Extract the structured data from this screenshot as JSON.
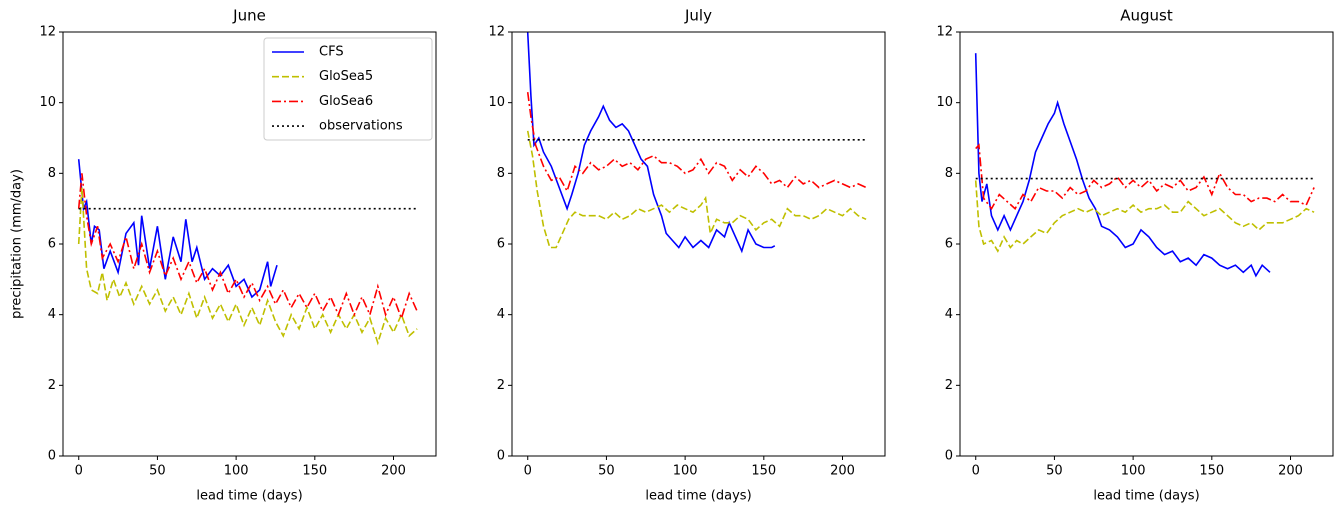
{
  "chart_data": [
    {
      "type": "line",
      "title": "June",
      "xlabel": "lead time (days)",
      "ylabel": "precipitation (mm/day)",
      "xlim": [
        -10,
        227
      ],
      "ylim": [
        0,
        12
      ],
      "xticks": [
        0,
        50,
        100,
        150,
        200
      ],
      "yticks": [
        0,
        2,
        4,
        6,
        8,
        10,
        12
      ],
      "legend": "upper right",
      "series": [
        {
          "name": "CFS",
          "color": "#0000ff",
          "style": "solid",
          "x": [
            0,
            3,
            5,
            8,
            10,
            13,
            16,
            20,
            25,
            30,
            35,
            38,
            40,
            45,
            50,
            55,
            60,
            65,
            68,
            72,
            75,
            80,
            85,
            90,
            95,
            100,
            105,
            110,
            115,
            120,
            122,
            126
          ],
          "values": [
            8.4,
            7.0,
            7.2,
            6.0,
            6.5,
            6.4,
            5.3,
            5.8,
            5.2,
            6.3,
            6.6,
            5.4,
            6.8,
            5.3,
            6.5,
            5.0,
            6.2,
            5.5,
            6.7,
            5.5,
            5.9,
            5.0,
            5.3,
            5.1,
            5.4,
            4.8,
            5.0,
            4.5,
            4.7,
            5.5,
            4.8,
            5.4
          ]
        },
        {
          "name": "GloSea5",
          "color": "#bfbf00",
          "style": "dashed",
          "x": [
            0,
            2,
            5,
            8,
            12,
            15,
            18,
            22,
            26,
            30,
            35,
            40,
            45,
            50,
            55,
            60,
            65,
            70,
            75,
            80,
            85,
            90,
            95,
            100,
            105,
            110,
            115,
            120,
            125,
            130,
            135,
            140,
            145,
            150,
            155,
            160,
            165,
            170,
            175,
            180,
            185,
            190,
            195,
            200,
            205,
            210,
            215
          ],
          "values": [
            6.0,
            7.6,
            5.3,
            4.7,
            4.6,
            5.2,
            4.4,
            5.0,
            4.5,
            4.9,
            4.3,
            4.8,
            4.3,
            4.7,
            4.1,
            4.5,
            4.0,
            4.6,
            3.9,
            4.5,
            3.9,
            4.3,
            3.8,
            4.3,
            3.7,
            4.2,
            3.7,
            4.4,
            3.8,
            3.4,
            4.0,
            3.6,
            4.2,
            3.6,
            4.0,
            3.5,
            4.0,
            3.6,
            4.0,
            3.5,
            3.9,
            3.2,
            3.9,
            3.5,
            4.0,
            3.4,
            3.6
          ]
        },
        {
          "name": "GloSea6",
          "color": "#ff0000",
          "style": "dashdot",
          "x": [
            0,
            2,
            5,
            8,
            12,
            15,
            20,
            25,
            30,
            35,
            40,
            45,
            50,
            55,
            60,
            65,
            70,
            75,
            80,
            85,
            90,
            95,
            100,
            105,
            110,
            115,
            120,
            125,
            130,
            135,
            140,
            145,
            150,
            155,
            160,
            165,
            170,
            175,
            180,
            185,
            190,
            195,
            200,
            205,
            210,
            215
          ],
          "values": [
            7.0,
            8.0,
            6.8,
            6.0,
            6.5,
            5.6,
            6.0,
            5.5,
            6.2,
            5.3,
            6.0,
            5.2,
            5.8,
            5.1,
            5.6,
            5.0,
            5.5,
            4.9,
            5.3,
            4.7,
            5.2,
            4.6,
            5.0,
            4.5,
            4.9,
            4.4,
            4.8,
            4.3,
            4.7,
            4.2,
            4.6,
            4.2,
            4.6,
            4.1,
            4.5,
            4.0,
            4.6,
            4.0,
            4.5,
            4.0,
            4.8,
            4.0,
            4.5,
            3.9,
            4.6,
            4.1
          ]
        },
        {
          "name": "observations",
          "color": "#000000",
          "style": "dotted",
          "x": [
            0,
            215
          ],
          "values": [
            7.0,
            7.0
          ]
        }
      ]
    },
    {
      "type": "line",
      "title": "July",
      "xlabel": "lead time (days)",
      "xlim": [
        -10,
        227
      ],
      "ylim": [
        0,
        12
      ],
      "xticks": [
        0,
        50,
        100,
        150,
        200
      ],
      "yticks": [
        0,
        2,
        4,
        6,
        8,
        10,
        12
      ],
      "series": [
        {
          "color": "#0000ff",
          "style": "solid",
          "x": [
            0,
            2,
            4,
            7,
            10,
            15,
            20,
            25,
            28,
            32,
            36,
            40,
            45,
            48,
            52,
            56,
            60,
            64,
            68,
            72,
            76,
            80,
            85,
            88,
            92,
            96,
            100,
            105,
            110,
            115,
            120,
            125,
            128,
            132,
            136,
            140,
            145,
            150,
            155,
            157
          ],
          "values": [
            12.0,
            10.2,
            8.8,
            9.0,
            8.6,
            8.2,
            7.6,
            7.0,
            7.4,
            8.0,
            8.8,
            9.2,
            9.6,
            9.9,
            9.5,
            9.3,
            9.4,
            9.2,
            8.8,
            8.4,
            8.2,
            7.4,
            6.8,
            6.3,
            6.1,
            5.9,
            6.2,
            5.9,
            6.1,
            5.9,
            6.4,
            6.2,
            6.6,
            6.2,
            5.8,
            6.4,
            6.0,
            5.9,
            5.9,
            5.95
          ]
        },
        {
          "color": "#bfbf00",
          "style": "dashed",
          "x": [
            0,
            3,
            6,
            10,
            14,
            18,
            22,
            26,
            30,
            35,
            40,
            45,
            50,
            55,
            60,
            65,
            70,
            75,
            80,
            85,
            90,
            95,
            100,
            105,
            110,
            113,
            116,
            120,
            125,
            130,
            135,
            140,
            145,
            150,
            155,
            160,
            165,
            170,
            175,
            180,
            185,
            190,
            195,
            200,
            205,
            210,
            215
          ],
          "values": [
            9.2,
            8.5,
            7.5,
            6.5,
            5.9,
            5.9,
            6.3,
            6.7,
            6.9,
            6.8,
            6.8,
            6.8,
            6.7,
            6.9,
            6.7,
            6.8,
            7.0,
            6.9,
            7.0,
            7.1,
            6.9,
            7.1,
            7.0,
            6.9,
            7.1,
            7.3,
            6.3,
            6.7,
            6.6,
            6.6,
            6.8,
            6.7,
            6.4,
            6.6,
            6.7,
            6.5,
            7.0,
            6.8,
            6.8,
            6.7,
            6.8,
            7.0,
            6.9,
            6.8,
            7.0,
            6.8,
            6.7
          ]
        },
        {
          "color": "#ff0000",
          "style": "dashdot",
          "x": [
            0,
            2,
            5,
            10,
            15,
            20,
            25,
            30,
            35,
            40,
            45,
            50,
            55,
            60,
            65,
            70,
            75,
            80,
            85,
            90,
            95,
            100,
            105,
            110,
            115,
            120,
            125,
            130,
            135,
            140,
            145,
            150,
            155,
            160,
            165,
            170,
            175,
            180,
            185,
            190,
            195,
            200,
            205,
            210,
            215
          ],
          "values": [
            10.3,
            9.6,
            8.8,
            8.2,
            7.8,
            7.9,
            7.5,
            8.2,
            8.0,
            8.3,
            8.1,
            8.2,
            8.4,
            8.2,
            8.3,
            8.1,
            8.4,
            8.5,
            8.3,
            8.3,
            8.2,
            8.0,
            8.1,
            8.4,
            8.0,
            8.3,
            8.2,
            7.8,
            8.1,
            7.9,
            8.2,
            8.0,
            7.7,
            7.8,
            7.6,
            7.9,
            7.7,
            7.8,
            7.6,
            7.7,
            7.8,
            7.7,
            7.6,
            7.7,
            7.6
          ]
        },
        {
          "color": "#000000",
          "style": "dotted",
          "x": [
            0,
            215
          ],
          "values": [
            8.95,
            8.95
          ]
        }
      ]
    },
    {
      "type": "line",
      "title": "August",
      "xlabel": "lead time (days)",
      "xlim": [
        -10,
        227
      ],
      "ylim": [
        0,
        12
      ],
      "xticks": [
        0,
        50,
        100,
        150,
        200
      ],
      "yticks": [
        0,
        2,
        4,
        6,
        8,
        10,
        12
      ],
      "series": [
        {
          "color": "#0000ff",
          "style": "solid",
          "x": [
            0,
            2,
            4,
            7,
            10,
            14,
            18,
            22,
            26,
            30,
            34,
            38,
            42,
            46,
            50,
            52,
            56,
            60,
            64,
            68,
            72,
            76,
            80,
            85,
            90,
            95,
            100,
            105,
            110,
            115,
            120,
            125,
            130,
            135,
            140,
            145,
            150,
            155,
            160,
            165,
            170,
            175,
            178,
            182,
            187
          ],
          "values": [
            11.4,
            8.0,
            7.2,
            7.7,
            6.8,
            6.4,
            6.8,
            6.4,
            6.8,
            7.2,
            7.8,
            8.6,
            9.0,
            9.4,
            9.7,
            10.0,
            9.4,
            8.9,
            8.4,
            7.8,
            7.3,
            7.0,
            6.5,
            6.4,
            6.2,
            5.9,
            6.0,
            6.4,
            6.2,
            5.9,
            5.7,
            5.8,
            5.5,
            5.6,
            5.4,
            5.7,
            5.6,
            5.4,
            5.3,
            5.4,
            5.2,
            5.4,
            5.1,
            5.4,
            5.2
          ]
        },
        {
          "color": "#bfbf00",
          "style": "dashed",
          "x": [
            0,
            2,
            5,
            10,
            14,
            18,
            22,
            26,
            30,
            35,
            40,
            45,
            50,
            55,
            60,
            65,
            70,
            75,
            80,
            85,
            90,
            95,
            100,
            105,
            110,
            115,
            120,
            125,
            130,
            135,
            140,
            145,
            150,
            155,
            160,
            165,
            170,
            175,
            180,
            185,
            190,
            195,
            200,
            205,
            210,
            215
          ],
          "values": [
            7.8,
            6.5,
            6.0,
            6.1,
            5.8,
            6.2,
            5.9,
            6.1,
            6.0,
            6.2,
            6.4,
            6.3,
            6.6,
            6.8,
            6.9,
            7.0,
            6.9,
            7.0,
            6.8,
            6.9,
            7.0,
            6.9,
            7.1,
            6.9,
            7.0,
            7.0,
            7.1,
            6.9,
            6.9,
            7.2,
            7.0,
            6.8,
            6.9,
            7.0,
            6.8,
            6.6,
            6.5,
            6.6,
            6.4,
            6.6,
            6.6,
            6.6,
            6.7,
            6.8,
            7.0,
            6.9
          ]
        },
        {
          "color": "#ff0000",
          "style": "dashdot",
          "x": [
            0,
            2,
            5,
            10,
            15,
            20,
            25,
            30,
            35,
            40,
            45,
            50,
            55,
            60,
            65,
            70,
            75,
            80,
            85,
            90,
            95,
            100,
            105,
            110,
            115,
            120,
            125,
            130,
            135,
            140,
            145,
            150,
            155,
            160,
            165,
            170,
            175,
            180,
            185,
            190,
            195,
            200,
            205,
            210,
            215
          ],
          "values": [
            8.7,
            8.8,
            7.3,
            7.0,
            7.4,
            7.2,
            7.0,
            7.4,
            7.2,
            7.6,
            7.5,
            7.5,
            7.3,
            7.6,
            7.4,
            7.5,
            7.8,
            7.6,
            7.7,
            7.9,
            7.6,
            7.8,
            7.6,
            7.8,
            7.5,
            7.7,
            7.6,
            7.8,
            7.5,
            7.6,
            7.9,
            7.4,
            8.0,
            7.6,
            7.4,
            7.4,
            7.2,
            7.3,
            7.3,
            7.2,
            7.4,
            7.2,
            7.2,
            7.1,
            7.6
          ]
        },
        {
          "color": "#000000",
          "style": "dotted",
          "x": [
            0,
            215
          ],
          "values": [
            7.85,
            7.85
          ]
        }
      ]
    }
  ]
}
